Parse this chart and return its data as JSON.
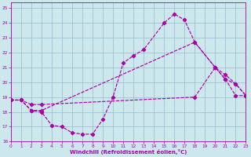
{
  "xlabel": "Windchill (Refroidissement éolien,°C)",
  "bg_color": "#cce8ec",
  "line_color": "#aa00aa",
  "grid_color": "#99bbcc",
  "xlim": [
    0,
    23
  ],
  "ylim": [
    16,
    25.4
  ],
  "xticks": [
    0,
    1,
    2,
    3,
    4,
    5,
    6,
    7,
    8,
    9,
    10,
    11,
    12,
    13,
    14,
    15,
    16,
    17,
    18,
    19,
    20,
    21,
    22,
    23
  ],
  "yticks": [
    16,
    17,
    18,
    19,
    20,
    21,
    22,
    23,
    24,
    25
  ],
  "s0_x": [
    0,
    1,
    2,
    3,
    4,
    5,
    6,
    7,
    8,
    9,
    10,
    11,
    12,
    13,
    15,
    16,
    17,
    18,
    20,
    21,
    22,
    23
  ],
  "s0_y": [
    18.8,
    18.8,
    18.1,
    18.0,
    17.1,
    17.0,
    16.6,
    16.5,
    16.5,
    17.5,
    19.0,
    21.3,
    21.8,
    22.2,
    24.0,
    24.6,
    24.2,
    22.7,
    21.0,
    20.2,
    19.1,
    19.1
  ],
  "s1_x": [
    0,
    1,
    2,
    3,
    18,
    20,
    21,
    22,
    23
  ],
  "s1_y": [
    18.8,
    18.8,
    18.1,
    18.1,
    22.7,
    21.0,
    20.5,
    19.9,
    19.1
  ],
  "s2_x": [
    0,
    1,
    2,
    3,
    18,
    20,
    21,
    22,
    23
  ],
  "s2_y": [
    18.8,
    18.8,
    18.5,
    18.5,
    19.0,
    21.0,
    20.2,
    19.9,
    19.1
  ]
}
